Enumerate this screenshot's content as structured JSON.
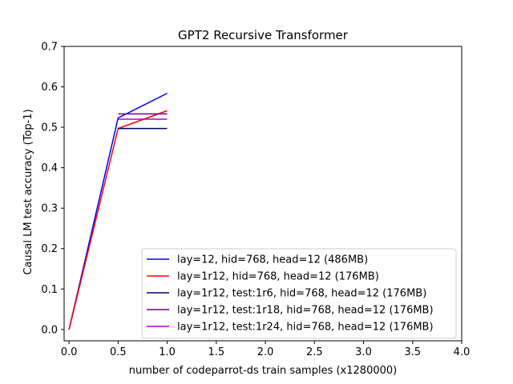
{
  "chart_data": {
    "type": "line",
    "title": "GPT2 Recursive Transformer",
    "xlabel": "number of codeparrot-ds train samples (x1280000)",
    "ylabel": "Causal LM test accuracy (Top-1)",
    "xlim": [
      -0.05,
      4.0
    ],
    "ylim": [
      -0.028,
      0.7
    ],
    "xticks": [
      "0.0",
      "0.5",
      "1.0",
      "1.5",
      "2.0",
      "2.5",
      "3.0",
      "3.5",
      "4.0"
    ],
    "yticks": [
      "0.0",
      "0.1",
      "0.2",
      "0.3",
      "0.4",
      "0.5",
      "0.6",
      "0.7"
    ],
    "grid": false,
    "legend_position": "bottom-right",
    "series": [
      {
        "name": "lay=12, hid=768, head=12 (486MB)",
        "color": "#0000ff",
        "x": [
          0.0,
          0.5,
          1.0
        ],
        "y": [
          0.0,
          0.523,
          0.584
        ]
      },
      {
        "name": "lay=1r12, hid=768, head=12 (176MB)",
        "color": "#ff0000",
        "x": [
          0.0,
          0.5,
          1.0
        ],
        "y": [
          0.0,
          0.497,
          0.541
        ]
      },
      {
        "name": "lay=1r12, test:1r6, hid=768, head=12 (176MB)",
        "color": "#00006e",
        "x": [
          0.5,
          1.0
        ],
        "y": [
          0.497,
          0.497
        ]
      },
      {
        "name": "lay=1r12, test:1r18, hid=768, head=12 (176MB)",
        "color": "#700090",
        "x": [
          0.5,
          1.0
        ],
        "y": [
          0.533,
          0.533
        ]
      },
      {
        "name": "lay=1r12, test:1r24, hid=768, head=12 (176MB)",
        "color": "#b000d8",
        "x": [
          0.5,
          1.0
        ],
        "y": [
          0.52,
          0.52
        ]
      }
    ]
  }
}
